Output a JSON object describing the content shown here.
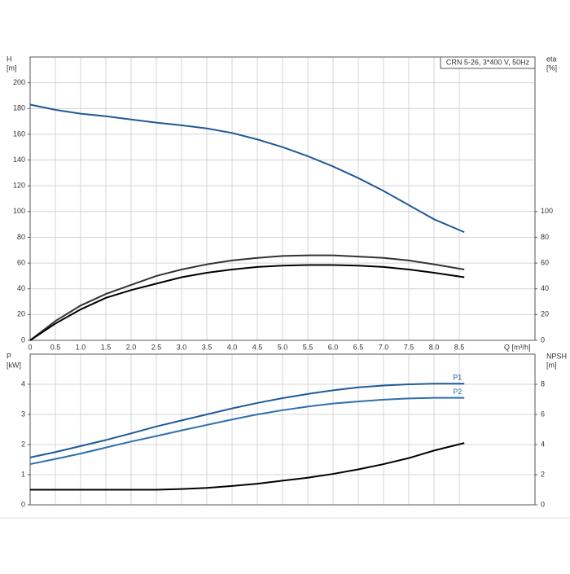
{
  "chart_data": [
    {
      "type": "line",
      "annotation": "CRN 5-26, 3*400 V, 50Hz",
      "ylabel": [
        "H",
        "[m]"
      ],
      "y2label": [
        "eta",
        "[%]"
      ],
      "xlabel": "Q [m³/h]",
      "xlim": [
        0,
        10
      ],
      "ylim": [
        0,
        220
      ],
      "y2lim": [
        0,
        220
      ],
      "grid": true,
      "xticks": [
        0,
        0.5,
        {
          "value": 1,
          "label": "1.0"
        },
        1.5,
        {
          "value": 2,
          "label": "2.0"
        },
        2.5,
        {
          "value": 3,
          "label": "3.0"
        },
        3.5,
        {
          "value": 4,
          "label": "4.0"
        },
        4.5,
        {
          "value": 5,
          "label": "5.0"
        },
        5.5,
        {
          "value": 6,
          "label": "6.0"
        },
        6.5,
        {
          "value": 7,
          "label": "7.0"
        },
        7.5,
        {
          "value": 8,
          "label": "8.0"
        },
        8.5
      ],
      "yticks": [
        0,
        20,
        40,
        60,
        80,
        100,
        120,
        140,
        160,
        180,
        200
      ],
      "y2ticks": [
        0,
        20,
        40,
        60,
        80,
        100
      ],
      "x": [
        0,
        0.5,
        1,
        1.5,
        2,
        2.5,
        3,
        3.5,
        4,
        4.5,
        5,
        5.5,
        6,
        6.5,
        7,
        7.5,
        8,
        8.6
      ],
      "series": [
        {
          "color": "#1f5a96",
          "values": [
            183,
            179,
            176,
            174,
            171.5,
            169,
            167,
            164.5,
            161,
            156,
            150,
            143,
            135,
            126,
            116,
            105,
            94,
            84
          ]
        },
        {
          "color": "#333333",
          "axis": "y2",
          "values": [
            0,
            15,
            27,
            36,
            43,
            50,
            55,
            59,
            62,
            64,
            65.5,
            66,
            66,
            65,
            64,
            62,
            59,
            55
          ]
        },
        {
          "color": "#000000",
          "axis": "y2",
          "values": [
            0,
            13,
            24,
            33,
            39,
            44,
            49,
            52.5,
            55,
            57,
            58,
            58.5,
            58.5,
            58,
            57,
            55,
            52.5,
            49
          ]
        }
      ]
    },
    {
      "type": "line",
      "ylabel": [
        "P",
        "[kW]"
      ],
      "y2label": [
        "NPSH",
        "[m]"
      ],
      "xlim": [
        0,
        10
      ],
      "ylim": [
        0,
        5
      ],
      "y2lim": [
        0,
        10
      ],
      "grid": true,
      "yticks": [
        0,
        1,
        2,
        3,
        4
      ],
      "y2ticks": [
        0,
        2,
        4,
        6,
        8
      ],
      "x": [
        0,
        0.5,
        1,
        1.5,
        2,
        2.5,
        3,
        3.5,
        4,
        4.5,
        5,
        5.5,
        6,
        6.5,
        7,
        7.5,
        8,
        8.6
      ],
      "series": [
        {
          "name": "P1",
          "color": "#1f5a96",
          "values": [
            1.57,
            1.75,
            1.95,
            2.15,
            2.37,
            2.6,
            2.8,
            3.0,
            3.2,
            3.38,
            3.54,
            3.68,
            3.8,
            3.9,
            3.96,
            4.0,
            4.02,
            4.02
          ]
        },
        {
          "name": "P2",
          "color": "#2e6fb0",
          "values": [
            1.35,
            1.52,
            1.7,
            1.9,
            2.1,
            2.28,
            2.47,
            2.65,
            2.83,
            3.0,
            3.14,
            3.26,
            3.36,
            3.43,
            3.49,
            3.53,
            3.55,
            3.55
          ]
        },
        {
          "color": "#000000",
          "axis": "y2",
          "values": [
            1.0,
            1.0,
            1.0,
            1.0,
            1.0,
            1.0,
            1.05,
            1.12,
            1.25,
            1.4,
            1.6,
            1.8,
            2.05,
            2.35,
            2.7,
            3.1,
            3.6,
            4.1
          ]
        }
      ]
    }
  ]
}
